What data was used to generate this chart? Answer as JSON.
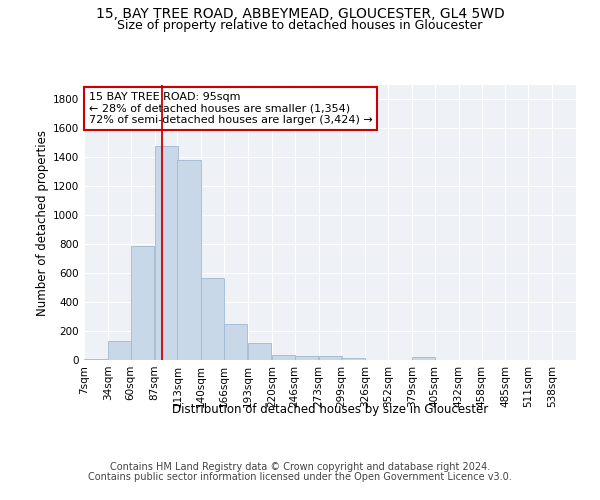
{
  "title_line1": "15, BAY TREE ROAD, ABBEYMEAD, GLOUCESTER, GL4 5WD",
  "title_line2": "Size of property relative to detached houses in Gloucester",
  "xlabel": "Distribution of detached houses by size in Gloucester",
  "ylabel": "Number of detached properties",
  "bar_color": "#c8d8e8",
  "bar_edgecolor": "#a0b8d0",
  "annotation_line1": "15 BAY TREE ROAD: 95sqm",
  "annotation_line2": "← 28% of detached houses are smaller (1,354)",
  "annotation_line3": "72% of semi-detached houses are larger (3,424) →",
  "annotation_box_color": "#ffffff",
  "annotation_box_edgecolor": "#cc0000",
  "vline_x": 95,
  "vline_color": "#cc0000",
  "categories": [
    "7sqm",
    "34sqm",
    "60sqm",
    "87sqm",
    "113sqm",
    "140sqm",
    "166sqm",
    "193sqm",
    "220sqm",
    "246sqm",
    "273sqm",
    "299sqm",
    "326sqm",
    "352sqm",
    "379sqm",
    "405sqm",
    "432sqm",
    "458sqm",
    "485sqm",
    "511sqm",
    "538sqm"
  ],
  "bin_edges": [
    7,
    34,
    60,
    87,
    113,
    140,
    166,
    193,
    220,
    246,
    273,
    299,
    326,
    352,
    379,
    405,
    432,
    458,
    485,
    511,
    538
  ],
  "bin_width": 27,
  "values": [
    10,
    130,
    790,
    1480,
    1385,
    570,
    250,
    120,
    35,
    30,
    30,
    15,
    0,
    0,
    20,
    0,
    0,
    0,
    0,
    0,
    0
  ],
  "ylim": [
    0,
    1900
  ],
  "yticks": [
    0,
    200,
    400,
    600,
    800,
    1000,
    1200,
    1400,
    1600,
    1800
  ],
  "background_color": "#eef2f7",
  "plot_background": "#eef2f7",
  "footer_line1": "Contains HM Land Registry data © Crown copyright and database right 2024.",
  "footer_line2": "Contains public sector information licensed under the Open Government Licence v3.0.",
  "title_fontsize": 10,
  "subtitle_fontsize": 9,
  "axis_label_fontsize": 8.5,
  "tick_fontsize": 7.5,
  "annotation_fontsize": 8,
  "footer_fontsize": 7
}
